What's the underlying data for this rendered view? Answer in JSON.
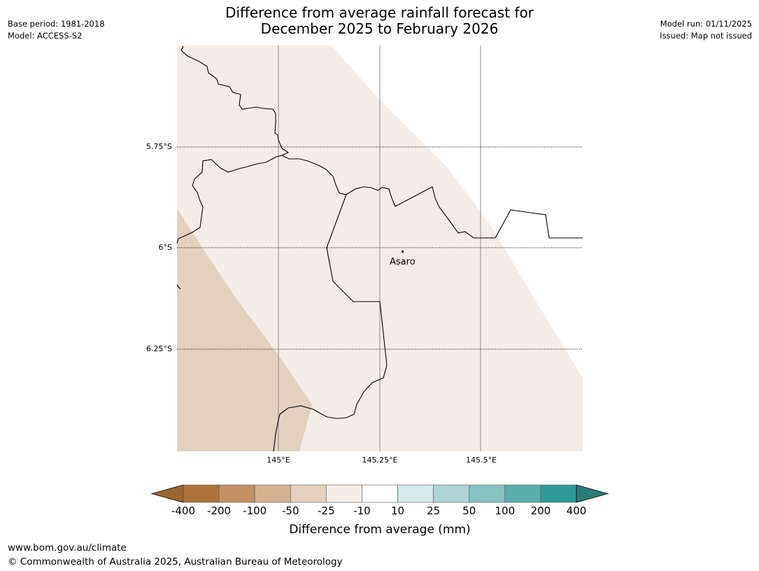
{
  "title": {
    "line1": "Difference from average rainfall forecast for",
    "line2": "December 2025 to February 2026"
  },
  "meta_left": {
    "base_period": "Base period: 1981-2018",
    "model": "Model: ACCESS-S2"
  },
  "meta_right": {
    "model_run": "Model run: 01/11/2025",
    "issued": "Issued: Map not issued"
  },
  "map": {
    "lat_labels": [
      "5.75°S",
      "6°S",
      "6.25°S"
    ],
    "lon_labels": [
      "145°E",
      "145.25°E",
      "145.5°E"
    ],
    "place": {
      "name": "Asaro"
    }
  },
  "colorbar": {
    "ticks": [
      "-400",
      "-200",
      "-100",
      "-50",
      "-25",
      "-10",
      "10",
      "25",
      "50",
      "100",
      "200",
      "400"
    ],
    "label": "Difference from average (mm)",
    "under_color": "#9c6630",
    "over_color": "#2a7b78",
    "colors": [
      "#ad7239",
      "#c29164",
      "#d4b393",
      "#e3d0bf",
      "#f5ede7",
      "#ffffff",
      "#d7e9e9",
      "#aed6d6",
      "#85c3c0",
      "#5aaeac",
      "#2f9996"
    ]
  },
  "footer": {
    "url": "www.bom.gov.au/climate",
    "copyright": "© Commonwealth of Australia 2025, Australian Bureau of Meteorology"
  }
}
